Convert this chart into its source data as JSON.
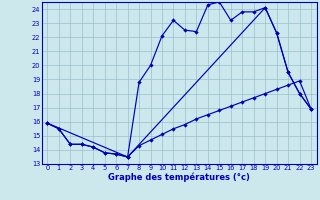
{
  "xlabel": "Graphe des températures (°c)",
  "x_ticks": [
    0,
    1,
    2,
    3,
    4,
    5,
    6,
    7,
    8,
    9,
    10,
    11,
    12,
    13,
    14,
    15,
    16,
    17,
    18,
    19,
    20,
    21,
    22,
    23
  ],
  "ylim": [
    13,
    24.5
  ],
  "yticks": [
    13,
    14,
    15,
    16,
    17,
    18,
    19,
    20,
    21,
    22,
    23,
    24
  ],
  "xlim": [
    -0.5,
    23.5
  ],
  "background_color": "#cce8ed",
  "grid_color": "#99c0cc",
  "line_color": "#0000bb",
  "line1_x": [
    0,
    1,
    2,
    3,
    4,
    5,
    6,
    7,
    8,
    9,
    10,
    11,
    12,
    13,
    14,
    15,
    16,
    17,
    18,
    19,
    20,
    21,
    22,
    23
  ],
  "line1_y": [
    15.9,
    15.5,
    14.4,
    14.4,
    14.2,
    13.8,
    13.7,
    13.5,
    14.3,
    14.7,
    15.1,
    15.5,
    15.8,
    16.2,
    16.5,
    16.8,
    17.1,
    17.4,
    17.7,
    18.0,
    18.3,
    18.6,
    18.9,
    16.9
  ],
  "line2_x": [
    0,
    1,
    2,
    3,
    4,
    5,
    6,
    7,
    8,
    9,
    10,
    11,
    12,
    13,
    14,
    15,
    16,
    17,
    18,
    19,
    20,
    21,
    22,
    23
  ],
  "line2_y": [
    15.9,
    15.5,
    14.4,
    14.4,
    14.2,
    13.8,
    13.7,
    13.5,
    18.8,
    20.0,
    22.1,
    23.2,
    22.5,
    22.4,
    24.3,
    24.5,
    23.2,
    23.8,
    23.8,
    24.1,
    22.3,
    19.5,
    18.0,
    16.9
  ],
  "line3_x": [
    0,
    7,
    19,
    20,
    21,
    22,
    23
  ],
  "line3_y": [
    15.9,
    13.5,
    24.1,
    22.3,
    19.5,
    18.0,
    16.9
  ]
}
